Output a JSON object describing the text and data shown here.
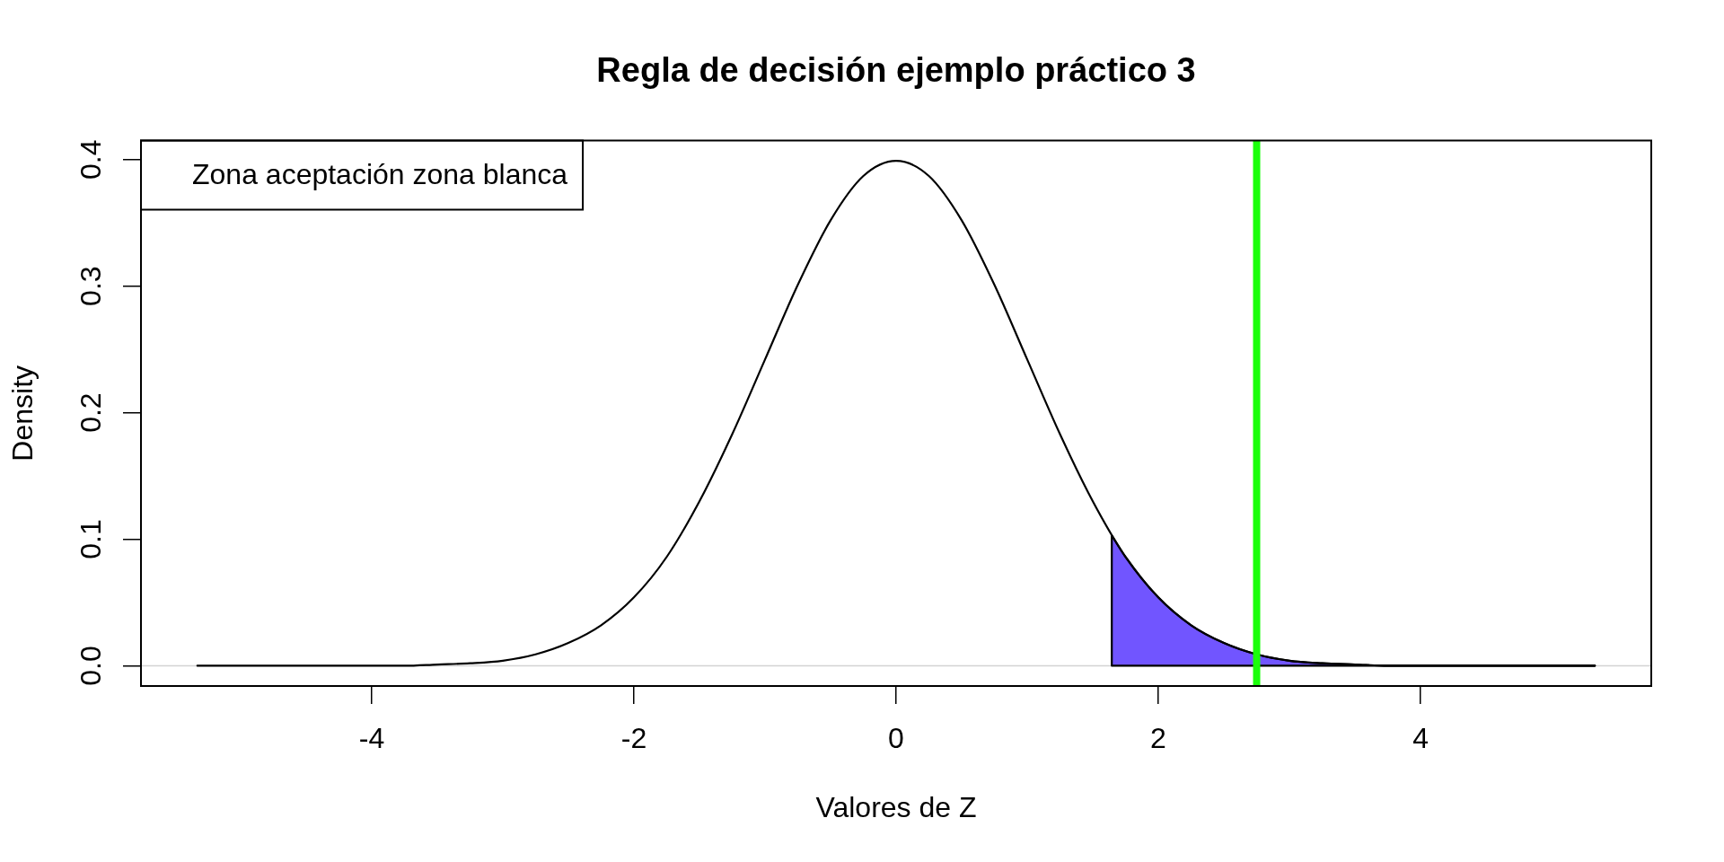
{
  "chart_data": {
    "type": "line",
    "title": "Regla de decisión ejemplo práctico 3",
    "xlabel": "Valores de Z",
    "ylabel": "Density",
    "series": [
      {
        "type": "area",
        "color": "#7155ff",
        "x": [
          1.645,
          1.75,
          2,
          2.25,
          2.5,
          2.75,
          3,
          3.25,
          3.5,
          3.75,
          4,
          4.5,
          5.33
        ],
        "values": [
          0.103,
          0.086,
          0.054,
          0.032,
          0.018,
          0.009,
          0.004,
          0.002,
          0.001,
          0,
          0,
          0,
          0
        ]
      },
      {
        "color": "#000000",
        "x": [
          -5.33,
          -4.5,
          -4,
          -3.75,
          -3.5,
          -3.25,
          -3,
          -2.75,
          -2.5,
          -2.25,
          -2,
          -1.75,
          -1.5,
          -1.25,
          -1,
          -0.75,
          -0.5,
          -0.25,
          0,
          0.25,
          0.5,
          0.75,
          1,
          1.25,
          1.5,
          1.75,
          2,
          2.25,
          2.5,
          2.75,
          3,
          3.25,
          3.5,
          3.75,
          4,
          4.5,
          5.33
        ],
        "values": [
          0,
          0,
          0,
          0,
          0.001,
          0.002,
          0.004,
          0.009,
          0.018,
          0.032,
          0.054,
          0.086,
          0.13,
          0.183,
          0.242,
          0.301,
          0.352,
          0.387,
          0.399,
          0.387,
          0.352,
          0.301,
          0.242,
          0.183,
          0.13,
          0.086,
          0.054,
          0.032,
          0.018,
          0.009,
          0.004,
          0.002,
          0.001,
          0,
          0,
          0,
          0
        ]
      }
    ],
    "xlim": [
      -5.76,
      5.76
    ],
    "ylim": [
      -0.016,
      0.415
    ],
    "xticks": [
      -4,
      -2,
      0,
      2,
      4
    ],
    "yticks": [
      {
        "value": 0,
        "label": "0.0"
      },
      0.1,
      0.2,
      0.3,
      0.4
    ],
    "ref_lines": [
      {
        "axis": "y",
        "value": 0,
        "color": "#d3d3d3"
      },
      {
        "axis": "x",
        "value": 2.75,
        "color": "#1aff0a"
      }
    ],
    "annotations": [
      "Zona aceptación zona blanca"
    ]
  }
}
